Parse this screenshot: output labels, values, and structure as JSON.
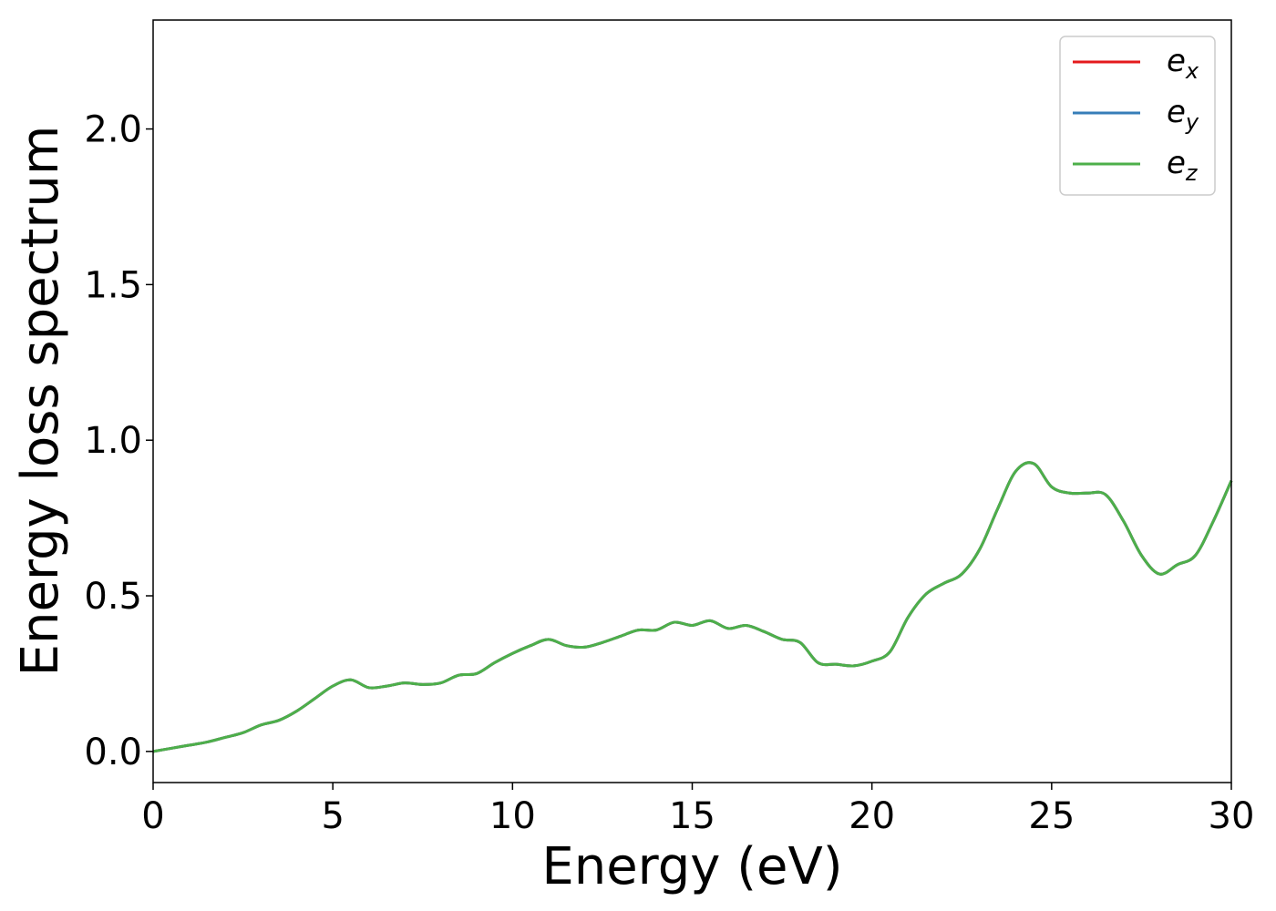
{
  "chart_data": {
    "type": "line",
    "title": "",
    "xlabel": "Energy (eV)",
    "ylabel": "Energy loss spectrum",
    "xlim": [
      0,
      30
    ],
    "ylim": [
      -0.1,
      2.35
    ],
    "xticks": [
      0,
      5,
      10,
      15,
      20,
      25,
      30
    ],
    "xtick_labels": [
      "0",
      "5",
      "10",
      "15",
      "20",
      "25",
      "30"
    ],
    "yticks": [
      0.0,
      0.5,
      1.0,
      1.5,
      2.0
    ],
    "ytick_labels": [
      "0.0",
      "0.5",
      "1.0",
      "1.5",
      "2.0"
    ],
    "grid": false,
    "legend_position": "top-right",
    "x": [
      0,
      0.5,
      1,
      1.5,
      2,
      2.5,
      3,
      3.5,
      4,
      4.5,
      5,
      5.5,
      6,
      6.5,
      7,
      7.5,
      8,
      8.5,
      9,
      9.5,
      10,
      10.5,
      11,
      11.5,
      12,
      12.5,
      13,
      13.5,
      14,
      14.5,
      15,
      15.5,
      16,
      16.5,
      17,
      17.5,
      18,
      18.5,
      19,
      19.5,
      20,
      20.5,
      21,
      21.5,
      22,
      22.5,
      23,
      23.5,
      24,
      24.5,
      25,
      25.5,
      26,
      26.5,
      27,
      27.5,
      28,
      28.5,
      29,
      29.5,
      30
    ],
    "series": [
      {
        "name": "e",
        "subscript": "x",
        "color": "#e41a1c",
        "values": [
          0.0,
          0.01,
          0.02,
          0.03,
          0.045,
          0.06,
          0.085,
          0.1,
          0.13,
          0.17,
          0.21,
          0.23,
          0.205,
          0.21,
          0.22,
          0.215,
          0.22,
          0.245,
          0.25,
          0.285,
          0.315,
          0.34,
          0.36,
          0.34,
          0.335,
          0.35,
          0.37,
          0.39,
          0.39,
          0.415,
          0.405,
          0.42,
          0.395,
          0.405,
          0.385,
          0.36,
          0.35,
          0.285,
          0.28,
          0.275,
          0.29,
          0.32,
          0.43,
          0.505,
          0.54,
          0.57,
          0.65,
          0.78,
          0.9,
          0.925,
          0.85,
          0.83,
          0.83,
          0.825,
          0.74,
          0.63,
          0.57,
          0.6,
          0.63,
          0.74,
          0.87
        ]
      },
      {
        "name": "e",
        "subscript": "y",
        "color": "#377eb8",
        "values": [
          0.0,
          0.01,
          0.02,
          0.03,
          0.045,
          0.06,
          0.085,
          0.1,
          0.13,
          0.17,
          0.21,
          0.23,
          0.205,
          0.21,
          0.22,
          0.215,
          0.22,
          0.245,
          0.25,
          0.285,
          0.315,
          0.34,
          0.36,
          0.34,
          0.335,
          0.35,
          0.37,
          0.39,
          0.39,
          0.415,
          0.405,
          0.42,
          0.395,
          0.405,
          0.385,
          0.36,
          0.35,
          0.285,
          0.28,
          0.275,
          0.29,
          0.32,
          0.43,
          0.505,
          0.54,
          0.57,
          0.65,
          0.78,
          0.9,
          0.925,
          0.85,
          0.83,
          0.83,
          0.825,
          0.74,
          0.63,
          0.57,
          0.6,
          0.63,
          0.74,
          0.87
        ]
      },
      {
        "name": "e",
        "subscript": "z",
        "color": "#4daf4a",
        "values": [
          0.0,
          0.01,
          0.02,
          0.03,
          0.045,
          0.06,
          0.085,
          0.1,
          0.13,
          0.17,
          0.21,
          0.23,
          0.205,
          0.21,
          0.22,
          0.215,
          0.22,
          0.245,
          0.25,
          0.285,
          0.315,
          0.34,
          0.36,
          0.34,
          0.335,
          0.35,
          0.37,
          0.39,
          0.39,
          0.415,
          0.405,
          0.42,
          0.395,
          0.405,
          0.385,
          0.36,
          0.35,
          0.285,
          0.28,
          0.275,
          0.29,
          0.32,
          0.43,
          0.505,
          0.54,
          0.57,
          0.65,
          0.78,
          0.9,
          0.925,
          0.85,
          0.83,
          0.83,
          0.825,
          0.74,
          0.63,
          0.57,
          0.6,
          0.63,
          0.74,
          0.87
        ]
      }
    ]
  }
}
